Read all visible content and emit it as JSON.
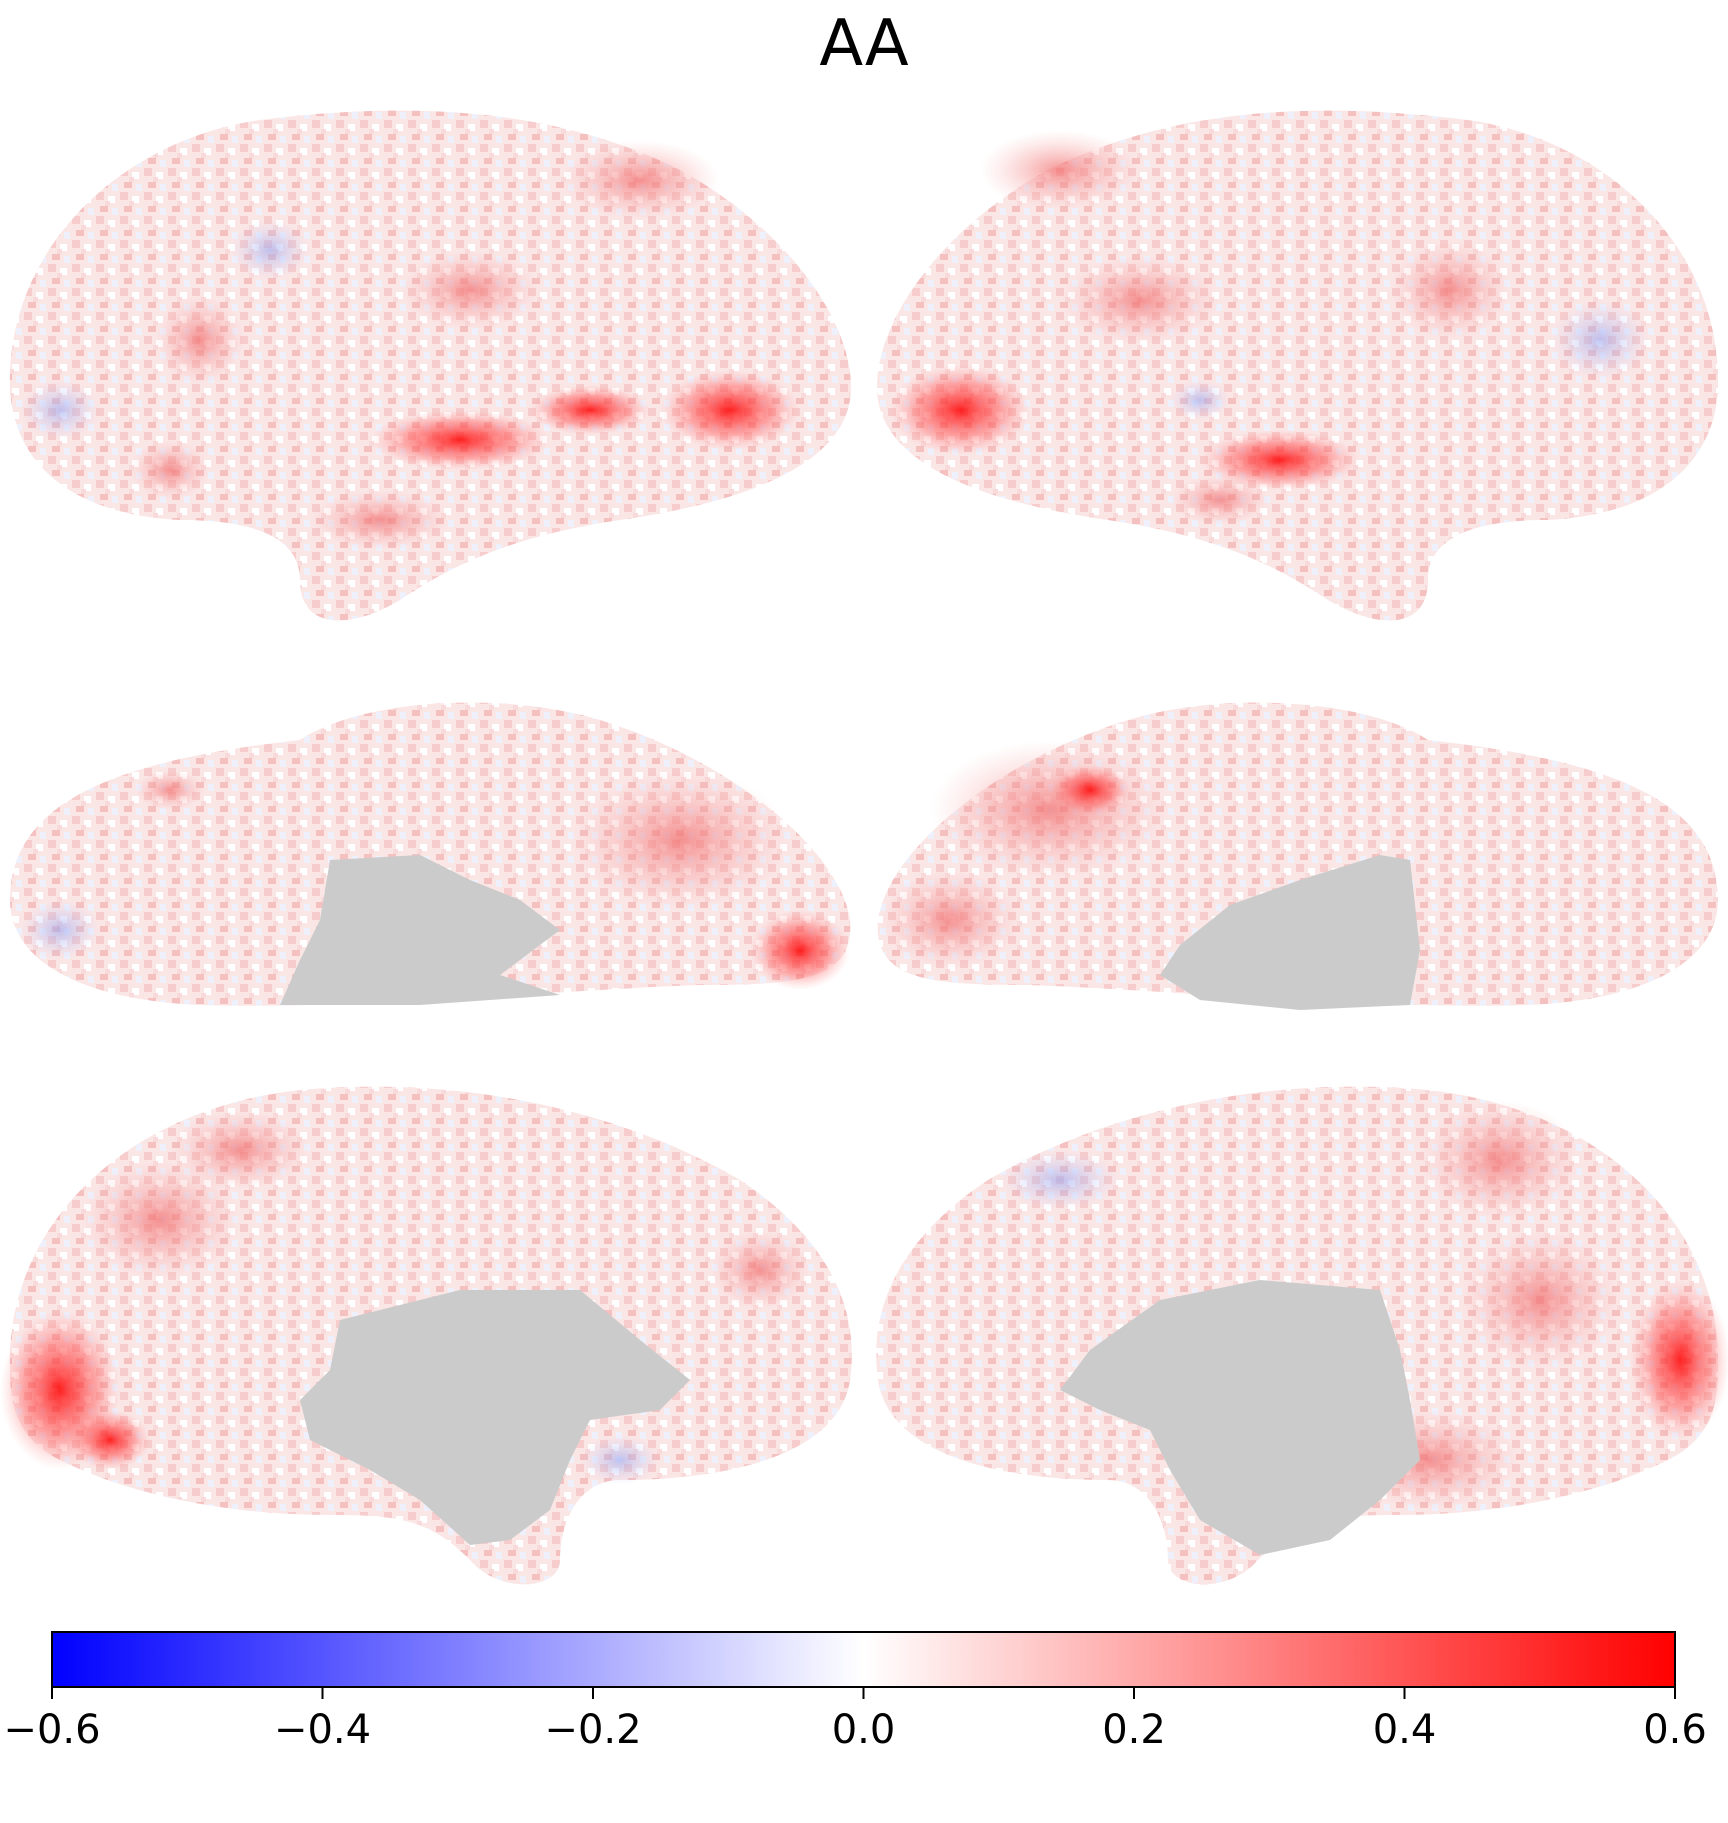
{
  "title": "AA",
  "colorbar": {
    "min": -0.6,
    "max": 0.6,
    "colormap": [
      "#0000ff",
      "#ffffff",
      "#ff0000"
    ],
    "ticks": [
      {
        "value": -0.6,
        "label": "−0.6"
      },
      {
        "value": -0.4,
        "label": "−0.4"
      },
      {
        "value": -0.2,
        "label": "−0.2"
      },
      {
        "value": 0.0,
        "label": "0.0"
      },
      {
        "value": 0.2,
        "label": "0.2"
      },
      {
        "value": 0.4,
        "label": "0.4"
      },
      {
        "value": 0.6,
        "label": "0.6"
      }
    ]
  },
  "medial_wall_color": "#cbcbcb",
  "views": [
    {
      "name": "left-lateral"
    },
    {
      "name": "right-lateral"
    },
    {
      "name": "left-ventral"
    },
    {
      "name": "right-ventral"
    },
    {
      "name": "left-medial"
    },
    {
      "name": "right-medial"
    }
  ]
}
